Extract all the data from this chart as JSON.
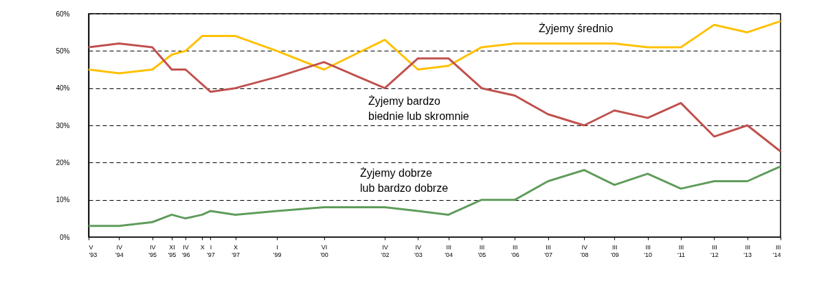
{
  "chart_data": {
    "type": "line",
    "legend": false,
    "grid": "y",
    "marker": "none",
    "line_style": "solid",
    "xlim": [
      "1993-05",
      "2014-03"
    ],
    "ylim": [
      0,
      60
    ],
    "yticks": [
      {
        "value": 0,
        "label": "0%"
      },
      {
        "value": 10,
        "label": "10%"
      },
      {
        "value": 20,
        "label": "20%"
      },
      {
        "value": 30,
        "label": "30%"
      },
      {
        "value": 40,
        "label": "40%"
      },
      {
        "value": 50,
        "label": "50%"
      },
      {
        "value": 60,
        "label": "60%"
      }
    ],
    "xticks": [
      {
        "value": "1993-05",
        "label": "V\n'93"
      },
      {
        "value": "1994-04",
        "label": "IV\n'94"
      },
      {
        "value": "1995-04",
        "label": "IV\n'95"
      },
      {
        "value": "1995-11",
        "label": "XI\n'95"
      },
      {
        "value": "1996-04",
        "label": "IV\n'96"
      },
      {
        "value": "1996-10",
        "label": "X\n"
      },
      {
        "value": "1997-01",
        "label": "I\n'97"
      },
      {
        "value": "1997-10",
        "label": "X\n'97"
      },
      {
        "value": "1999-01",
        "label": "I\n'99"
      },
      {
        "value": "2000-06",
        "label": "VI\n'00"
      },
      {
        "value": "2002-04",
        "label": "IV\n'02"
      },
      {
        "value": "2003-04",
        "label": "IV\n'03"
      },
      {
        "value": "2004-03",
        "label": "III\n'04"
      },
      {
        "value": "2005-03",
        "label": "III\n'05"
      },
      {
        "value": "2006-03",
        "label": "III\n'06"
      },
      {
        "value": "2007-03",
        "label": "III\n'07"
      },
      {
        "value": "2008-04",
        "label": "IV\n'08"
      },
      {
        "value": "2009-03",
        "label": "III\n'09"
      },
      {
        "value": "2010-03",
        "label": "III\n'10"
      },
      {
        "value": "2011-03",
        "label": "III\n'11"
      },
      {
        "value": "2012-03",
        "label": "III\n'12"
      },
      {
        "value": "2013-03",
        "label": "III\n'13"
      },
      {
        "value": "2014-03",
        "label": "III\n'14"
      }
    ],
    "series": [
      {
        "name": "Żyjemy średnio",
        "color": "#ffc000",
        "x": [
          "1993-05",
          "1994-04",
          "1995-04",
          "1995-11",
          "1996-04",
          "1996-10",
          "1997-10",
          "1999-01",
          "2000-06",
          "2002-04",
          "2003-04",
          "2004-03",
          "2005-03",
          "2006-03",
          "2007-03",
          "2008-04",
          "2009-03",
          "2010-03",
          "2011-03",
          "2012-03",
          "2013-03",
          "2014-03"
        ],
        "values": [
          45,
          44,
          45,
          49,
          50,
          54,
          54,
          50,
          45,
          53,
          45,
          46,
          51,
          52,
          52,
          52,
          52,
          51,
          51,
          57,
          55,
          58
        ]
      },
      {
        "name": "Żyjemy bardzo\nbiednie lub skromnie",
        "color": "#c0504d",
        "x": [
          "1993-05",
          "1994-04",
          "1995-04",
          "1995-11",
          "1996-04",
          "1997-01",
          "1997-10",
          "1999-01",
          "2000-06",
          "2002-04",
          "2003-04",
          "2004-03",
          "2005-03",
          "2006-03",
          "2007-03",
          "2008-04",
          "2009-03",
          "2010-03",
          "2011-03",
          "2012-03",
          "2013-03",
          "2014-03"
        ],
        "values": [
          51,
          52,
          51,
          45,
          45,
          39,
          40,
          43,
          47,
          40,
          48,
          48,
          40,
          38,
          33,
          30,
          34,
          32,
          36,
          27,
          30,
          23
        ]
      },
      {
        "name": "Żyjemy dobrze\nlub bardzo dobrze",
        "color": "#5e9c5a",
        "x": [
          "1993-05",
          "1994-04",
          "1995-04",
          "1995-11",
          "1996-04",
          "1996-10",
          "1997-01",
          "1997-10",
          "1999-01",
          "2000-06",
          "2002-04",
          "2003-04",
          "2004-03",
          "2005-03",
          "2006-03",
          "2007-03",
          "2008-04",
          "2009-03",
          "2010-03",
          "2011-03",
          "2012-03",
          "2013-03",
          "2014-03"
        ],
        "values": [
          3,
          3,
          4,
          6,
          5,
          6,
          7,
          6,
          7,
          8,
          8,
          7,
          6,
          10,
          10,
          15,
          18,
          14,
          17,
          13,
          15,
          15,
          19
        ]
      }
    ]
  }
}
